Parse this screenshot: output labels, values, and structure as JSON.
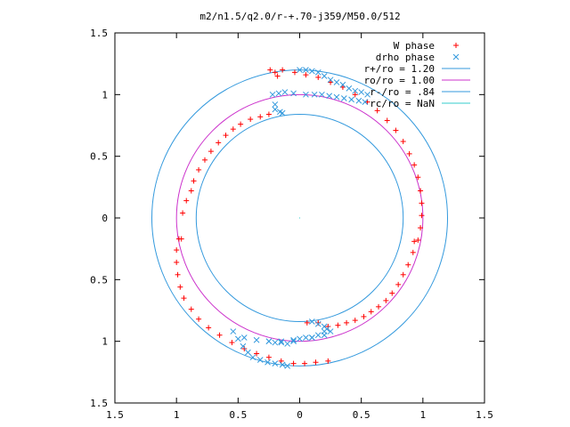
{
  "chart_data": {
    "type": "scatter",
    "title": "m2/n1.5/q2.0/r-+.70-j359/M50.0/512",
    "xlim": [
      -1.5,
      1.5
    ],
    "ylim": [
      -1.5,
      1.5
    ],
    "x_ticks": [
      -1.5,
      -1,
      -0.5,
      0,
      0.5,
      1,
      1.5
    ],
    "x_tick_labels": [
      "1.5",
      "1",
      "0.5",
      "0",
      "0.5",
      "1",
      "1.5"
    ],
    "y_ticks": [
      1.5,
      1,
      0.5,
      0,
      -0.5,
      -1,
      -1.5
    ],
    "y_tick_labels": [
      "1.5",
      "1",
      "0.5",
      "0",
      "0.5",
      "1",
      "1.5"
    ],
    "grid": false,
    "legend_position": "top-right",
    "series": [
      {
        "name": "W phase",
        "kind": "points",
        "marker": "+",
        "color": "#ff0000",
        "x": [
          0.23,
          0.13,
          0.04,
          -0.05,
          -0.15,
          -0.25,
          -0.35,
          -0.45,
          -0.55,
          -0.65,
          -0.74,
          -0.82,
          -0.88,
          -0.94,
          -0.97,
          -0.99,
          -1.0,
          -1.0,
          -0.98,
          -0.96,
          -0.95,
          -0.92,
          -0.88,
          -0.86,
          -0.82,
          -0.77,
          -0.72,
          -0.66,
          -0.6,
          -0.54,
          -0.48,
          -0.4,
          -0.32,
          -0.25,
          -0.18,
          -0.2,
          -0.24,
          -0.14,
          -0.04,
          0.05,
          0.15,
          0.25,
          0.35,
          0.45,
          0.55,
          0.63,
          0.71,
          0.78,
          0.84,
          0.89,
          0.93,
          0.96,
          0.98,
          0.99,
          0.99,
          0.98,
          0.96,
          0.93,
          0.92,
          0.88,
          0.84,
          0.8,
          0.75,
          0.7,
          0.64,
          0.58,
          0.52,
          0.45,
          0.38,
          0.31,
          0.23,
          0.15,
          0.06
        ],
        "y": [
          -1.16,
          -1.17,
          -1.18,
          -1.18,
          -1.16,
          -1.13,
          -1.1,
          -1.06,
          -1.01,
          -0.95,
          -0.89,
          -0.82,
          -0.74,
          -0.65,
          -0.56,
          -0.46,
          -0.36,
          -0.26,
          -0.17,
          -0.17,
          0.04,
          0.14,
          0.22,
          0.3,
          0.39,
          0.47,
          0.54,
          0.61,
          0.67,
          0.72,
          0.76,
          0.8,
          0.82,
          0.84,
          1.15,
          1.18,
          1.2,
          1.2,
          1.18,
          1.16,
          1.14,
          1.1,
          1.06,
          1.0,
          0.94,
          0.87,
          0.79,
          0.71,
          0.62,
          0.52,
          0.43,
          0.33,
          0.22,
          0.12,
          0.02,
          -0.08,
          -0.18,
          -0.19,
          -0.28,
          -0.38,
          -0.46,
          -0.54,
          -0.61,
          -0.67,
          -0.72,
          -0.76,
          -0.8,
          -0.83,
          -0.85,
          -0.87,
          -0.88,
          -0.85,
          -0.85
        ]
      },
      {
        "name": "drho phase",
        "kind": "points",
        "marker": "x",
        "color": "#3399dd",
        "x": [
          -0.54,
          -0.5,
          -0.46,
          -0.42,
          -0.38,
          -0.32,
          -0.26,
          -0.2,
          -0.14,
          -0.1,
          -0.25,
          -0.2,
          -0.15,
          -0.1,
          -0.05,
          0.0,
          0.05,
          0.1,
          0.15,
          0.2,
          0.0,
          0.05,
          0.1,
          0.15,
          0.2,
          0.25,
          0.3,
          0.35,
          0.4,
          0.45,
          0.5,
          0.55,
          -0.22,
          -0.17,
          -0.12,
          -0.05,
          0.05,
          0.12,
          0.18,
          0.24,
          0.3,
          0.36,
          0.42,
          0.48,
          0.53,
          -0.2,
          -0.2,
          -0.16,
          -0.14,
          0.1,
          0.15,
          0.2,
          0.22,
          0.25,
          0.2,
          0.1,
          -0.05,
          -0.15,
          -0.25,
          -0.35,
          -0.45
        ],
        "y": [
          -0.92,
          -0.98,
          -1.04,
          -1.09,
          -1.13,
          -1.15,
          -1.17,
          -1.18,
          -1.19,
          -1.2,
          -1.0,
          -1.01,
          -1.01,
          -1.02,
          -1.0,
          -0.98,
          -0.97,
          -0.97,
          -0.95,
          -0.92,
          1.2,
          1.2,
          1.19,
          1.18,
          1.15,
          1.12,
          1.1,
          1.08,
          1.05,
          1.03,
          1.02,
          1.0,
          1.0,
          1.01,
          1.02,
          1.01,
          1.0,
          1.0,
          1.0,
          0.99,
          0.98,
          0.97,
          0.96,
          0.95,
          0.94,
          0.92,
          0.88,
          0.86,
          0.85,
          -0.84,
          -0.86,
          -0.88,
          -0.9,
          -0.92,
          -0.95,
          -0.97,
          -0.99,
          -1.0,
          -1.0,
          -0.99,
          -0.97
        ]
      },
      {
        "name": "r+/ro = 1.20",
        "kind": "circle",
        "radius": 1.2,
        "color": "#3399dd"
      },
      {
        "name": "ro/ro = 1.00",
        "kind": "circle",
        "radius": 1.0,
        "color": "#cc33cc"
      },
      {
        "name": "r-/ro = .84",
        "kind": "circle",
        "radius": 0.84,
        "color": "#3399dd"
      },
      {
        "name": "rc/ro = NaN",
        "kind": "circle",
        "radius": 0,
        "color": "#33cccc"
      }
    ]
  }
}
